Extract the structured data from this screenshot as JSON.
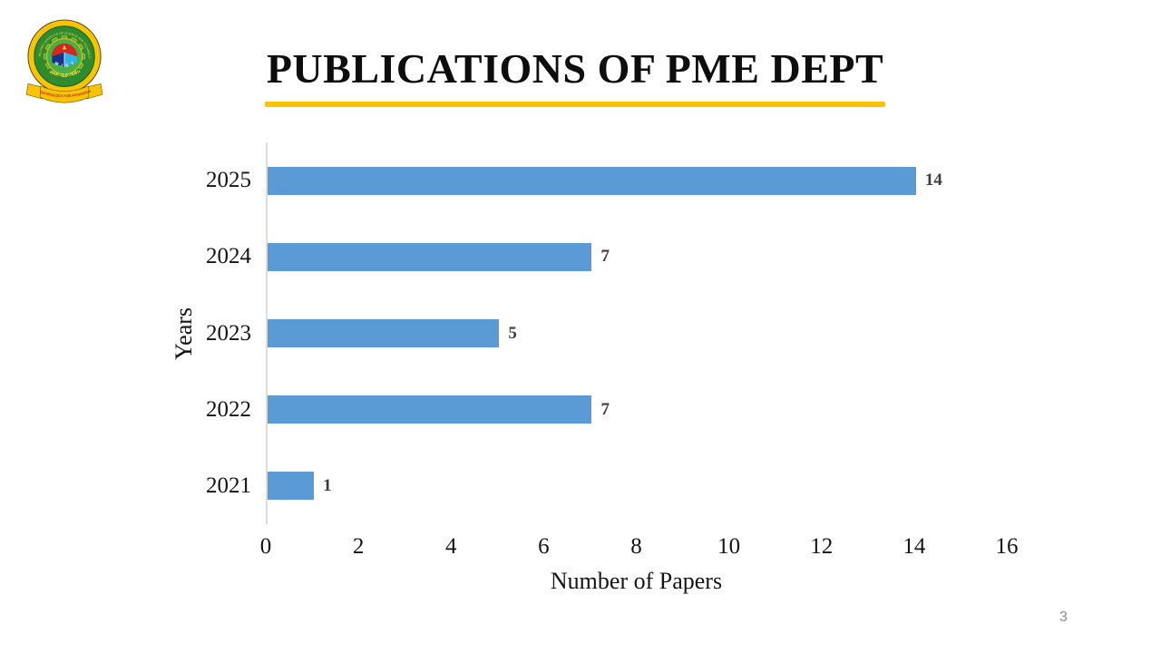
{
  "slide": {
    "title": "PUBLICATIONS OF PME DEPT",
    "page_number": "3",
    "accent_color": "#FCC200"
  },
  "logo": {
    "institution": "MILITARY INSTITUTE OF SCIENCE AND TECHNOLOGY",
    "country": "BANGLADESH",
    "motto": "TECHNOLOGY FOR ADVANCEMENT",
    "acronym": "M I S T"
  },
  "chart_data": {
    "type": "bar",
    "orientation": "horizontal",
    "categories": [
      "2025",
      "2024",
      "2023",
      "2022",
      "2021"
    ],
    "values": [
      14,
      7,
      5,
      7,
      1
    ],
    "title": "",
    "xlabel": "Number of Papers",
    "ylabel": "Years",
    "xlim": [
      0,
      16
    ],
    "xticks": [
      0,
      2,
      4,
      6,
      8,
      10,
      12,
      14,
      16
    ],
    "bar_color": "#5B9BD5",
    "grid": false,
    "value_labels": true,
    "legend": false
  }
}
